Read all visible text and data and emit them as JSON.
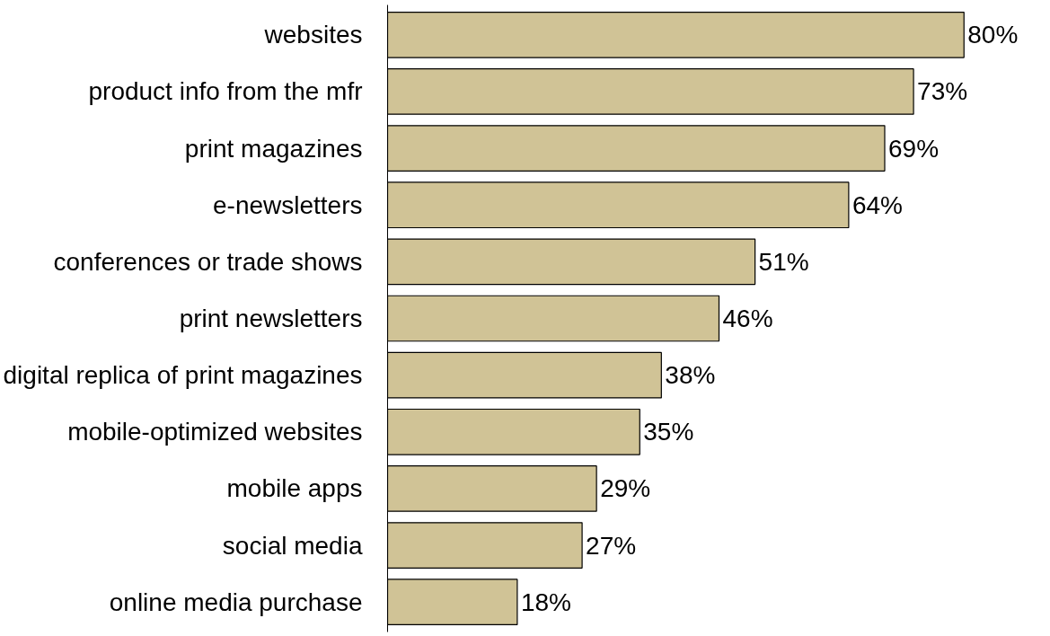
{
  "chart_data": {
    "type": "bar",
    "orientation": "horizontal",
    "categories": [
      "websites",
      "product info from the mfr",
      "print magazines",
      "e-newsletters",
      "conferences or trade shows",
      "print newsletters",
      "digital replica of print magazines",
      "mobile-optimized websites",
      "mobile apps",
      "social media",
      "online media purchase"
    ],
    "values": [
      80,
      73,
      69,
      64,
      51,
      46,
      38,
      35,
      29,
      27,
      18
    ],
    "value_labels": [
      "80%",
      "73%",
      "69%",
      "64%",
      "51%",
      "46%",
      "38%",
      "35%",
      "29%",
      "27%",
      "18%"
    ],
    "color": "#d0c396",
    "tick_labels": "y",
    "grid": false
  }
}
